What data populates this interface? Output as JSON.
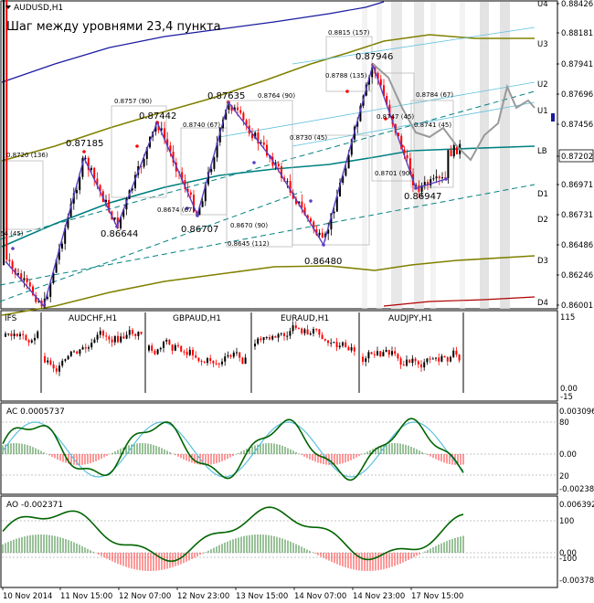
{
  "symbol": "AUDUSD,H1",
  "note": "Шаг между уровнями 23,4 пункта",
  "price_tag": "0.87202",
  "colors": {
    "bull": "#000000",
    "bear": "#ff0000",
    "mid": "#008080",
    "ch1": "#808000",
    "ch2": "#1a1aa0",
    "ch3": "#b00000",
    "zig": "#5b3fc4",
    "fc": "#9a9a9a",
    "ac_main": "#006400",
    "ac_sig": "#5bc0de"
  },
  "price_axis": [
    "0.88426",
    "0.88181",
    "0.87941",
    "0.87696",
    "0.87456",
    "0.87202",
    "0.86971",
    "0.86731",
    "0.86486",
    "0.86246",
    "0.86001"
  ],
  "level_names": [
    "U4",
    "U3",
    "U2",
    "U1",
    "LB",
    "D1",
    "D2",
    "D3",
    "D4"
  ],
  "time_axis": [
    "10 Nov 2014",
    "11 Nov 15:00",
    "12 Nov 07:00",
    "12 Nov 23:00",
    "13 Nov 15:00",
    "14 Nov 07:00",
    "14 Nov 23:00",
    "17 Nov 15:00"
  ],
  "subwindows": {
    "ifs": {
      "label": "IFS",
      "symbols": [
        "AUDCHF,H1",
        "GBPAUD,H1",
        "EURAUD,H1",
        "AUDJPY,H1"
      ],
      "scale": [
        "115",
        "0.00",
        "-15"
      ]
    },
    "ac": {
      "label": "AC 0.0005737",
      "scale": [
        "0.003096",
        "80",
        "0.00",
        "20",
        "-0.002387"
      ]
    },
    "ao": {
      "label": "AO -0.002371",
      "scale": [
        "0.006392",
        "100",
        "0.00",
        "-100",
        "-0.003786"
      ]
    }
  },
  "chart_data": {
    "type": "candlestick",
    "symbol": "AUDUSD",
    "timeframe": "H1",
    "ylim": [
      0.86,
      0.8843
    ],
    "extremes": [
      {
        "label": "0.87185",
        "value": 0.87185
      },
      {
        "label": "0.86644",
        "value": 0.86644
      },
      {
        "label": "0.87442",
        "value": 0.87442
      },
      {
        "label": "0.86707",
        "value": 0.86707
      },
      {
        "label": "0.87635",
        "value": 0.87635
      },
      {
        "label": "0.86480",
        "value": 0.8648
      },
      {
        "label": "0.87946",
        "value": 0.87946
      },
      {
        "label": "0.86947",
        "value": 0.86947
      }
    ],
    "annotations": [
      "54 (45)",
      "0.8720 (136)",
      "0.8757 (90)",
      "0.8740 (67)",
      "0.8674 (67)",
      "0.8764 (90)",
      "0.8730 (45)",
      "0.8670 (90)",
      "0.8645 (112)",
      "0.8815 (157)",
      "0.8788 (135)",
      "0.8747 (45)",
      "0.8784 (67)",
      "0.8741 (45)",
      "0.8701 (90)"
    ]
  }
}
